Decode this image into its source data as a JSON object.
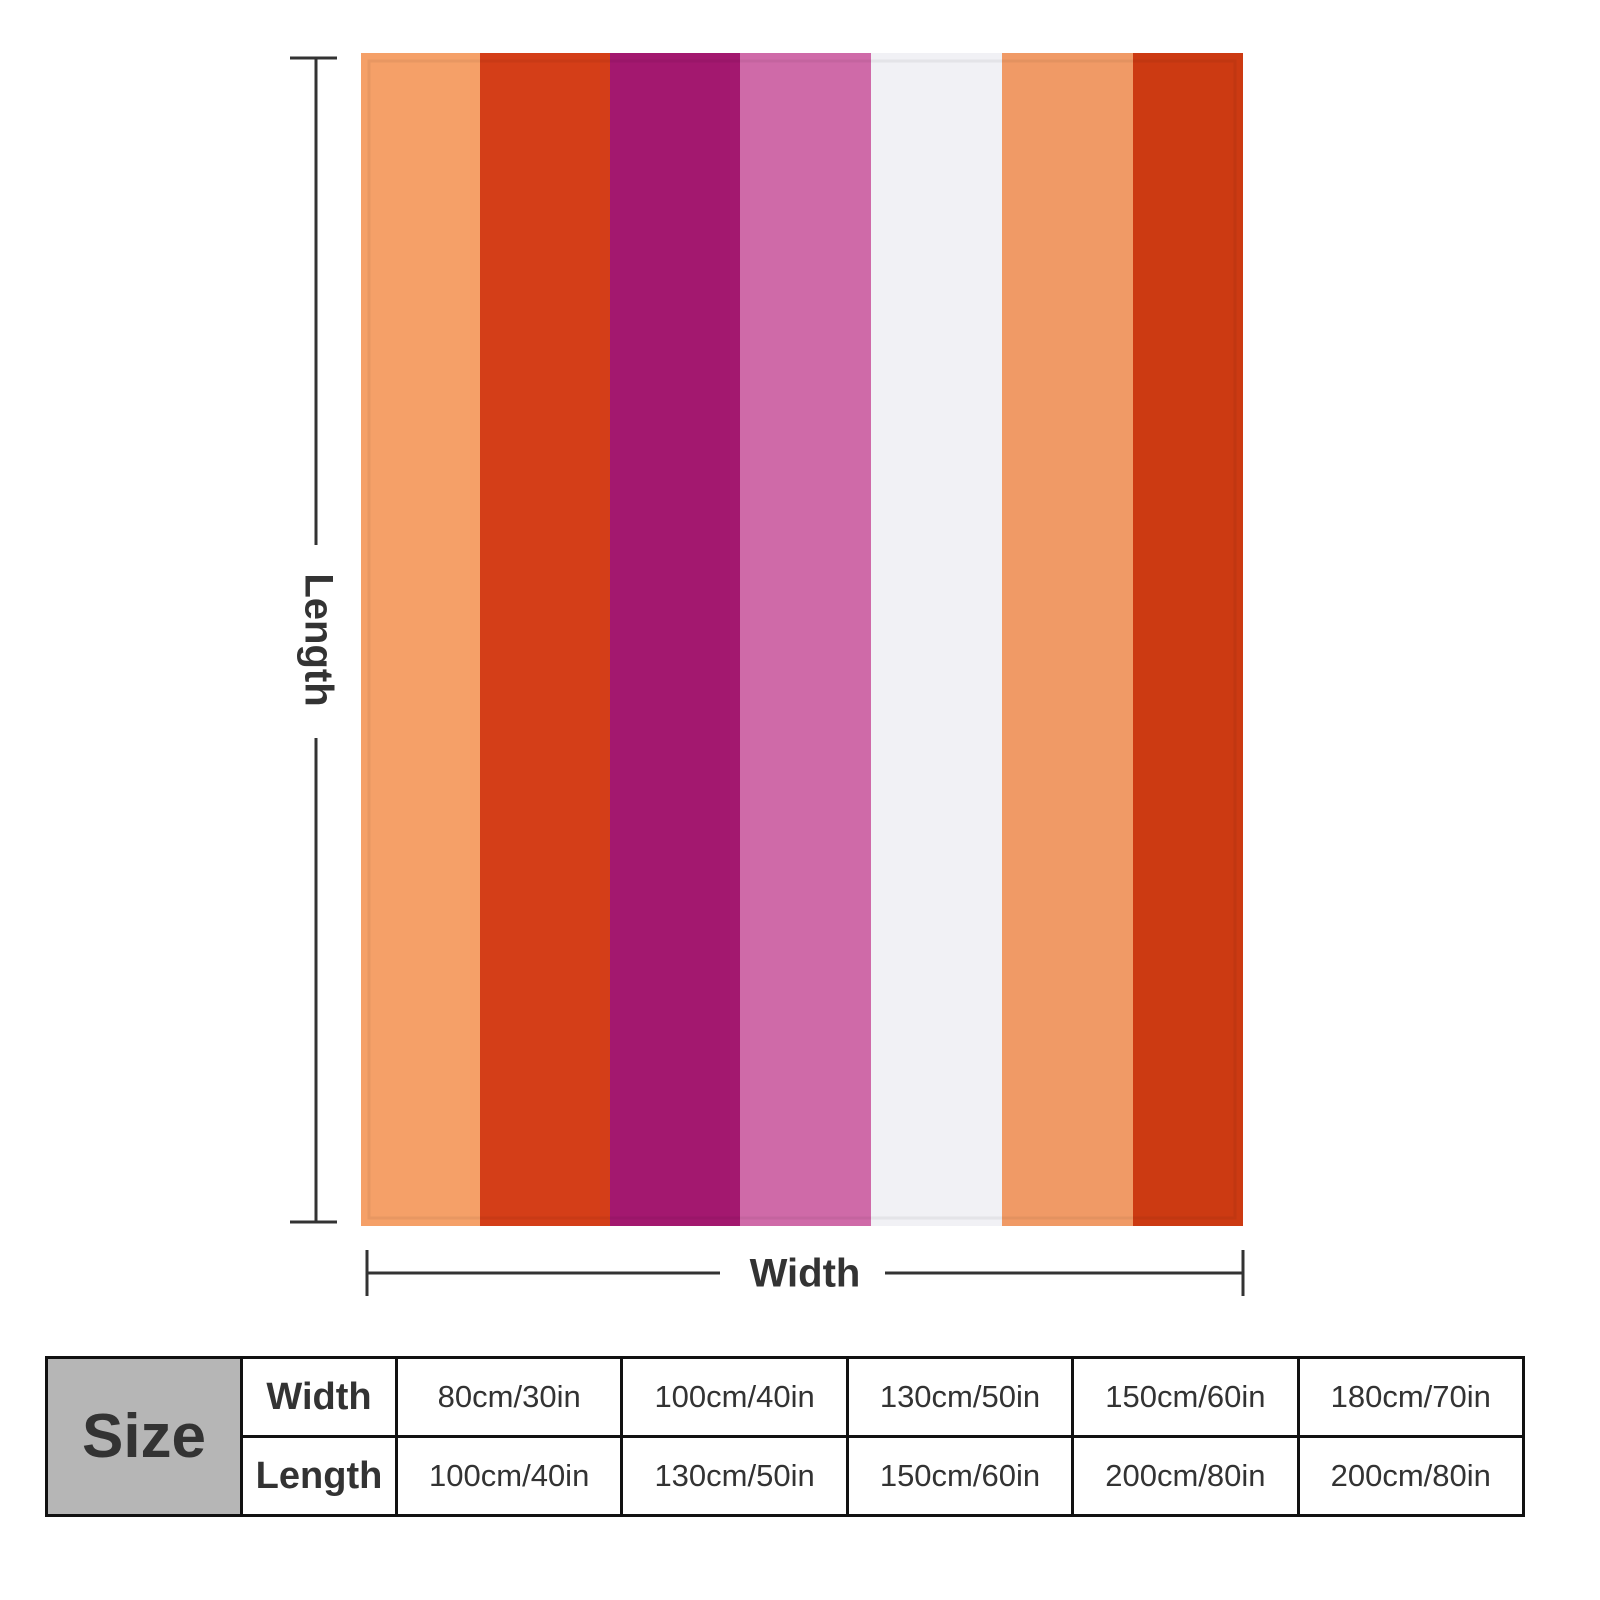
{
  "dimensions": {
    "length": "Length",
    "width": "Width"
  },
  "table": {
    "corner": "Size",
    "rows": [
      [
        "Width",
        "80cm/30in",
        "100cm/40in",
        "130cm/50in",
        "150cm/60in",
        "180cm/70in"
      ],
      [
        "Length",
        "100cm/40in",
        "130cm/50in",
        "150cm/60in",
        "200cm/80in",
        "200cm/80in"
      ]
    ]
  }
}
